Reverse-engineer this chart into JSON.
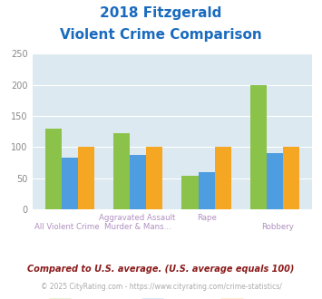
{
  "title_line1": "2018 Fitzgerald",
  "title_line2": "Violent Crime Comparison",
  "fitzgerald": [
    130,
    123,
    54,
    200
  ],
  "georgia": [
    83,
    87,
    60,
    91
  ],
  "national": [
    100,
    100,
    100,
    100
  ],
  "colors": {
    "fitzgerald": "#8bc34a",
    "georgia": "#4d9de0",
    "national": "#f5a623"
  },
  "ylim": [
    0,
    250
  ],
  "yticks": [
    0,
    50,
    100,
    150,
    200,
    250
  ],
  "background_color": "#dce9f0",
  "title_color": "#1a6bbf",
  "axis_label_color_top": "#b0a0c0",
  "axis_label_color_bottom": "#b0a0c0",
  "footnote1": "Compared to U.S. average. (U.S. average equals 100)",
  "footnote2": "© 2025 CityRating.com - https://www.cityrating.com/crime-statistics/",
  "footnote1_color": "#8b1a1a",
  "footnote2_color": "#aaaaaa",
  "legend_label_color": "#333333",
  "top_labels": [
    "",
    "Aggravated Assault",
    "Rape",
    ""
  ],
  "bottom_labels": [
    "All Violent Crime",
    "Murder & Mans...",
    "",
    "Robbery"
  ]
}
